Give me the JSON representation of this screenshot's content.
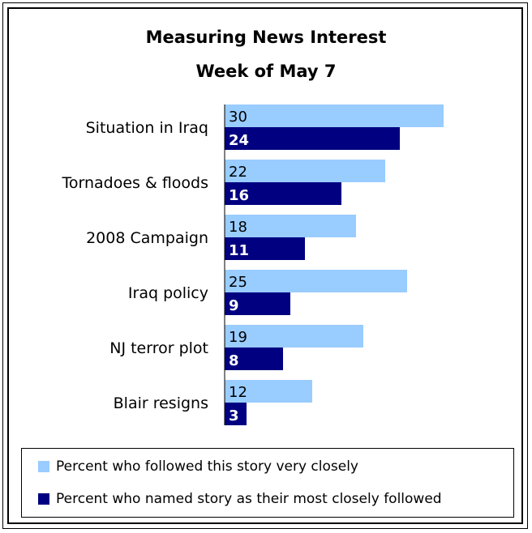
{
  "chart_data": {
    "type": "bar",
    "orientation": "horizontal",
    "title": "Measuring News Interest",
    "subtitle": "Week of May 7",
    "categories": [
      "Situation in Iraq",
      "Tornadoes & floods",
      "2008 Campaign",
      "Iraq policy",
      "NJ terror plot",
      "Blair resigns"
    ],
    "series": [
      {
        "name": "Percent who followed this story very closely",
        "color": "#99ccff",
        "values": [
          30,
          22,
          18,
          25,
          19,
          12
        ]
      },
      {
        "name": "Percent who named story as their most closely followed",
        "color": "#000080",
        "values": [
          24,
          16,
          11,
          9,
          8,
          3
        ]
      }
    ],
    "xlim": [
      0,
      35
    ],
    "grid": false,
    "legend_position": "bottom"
  }
}
